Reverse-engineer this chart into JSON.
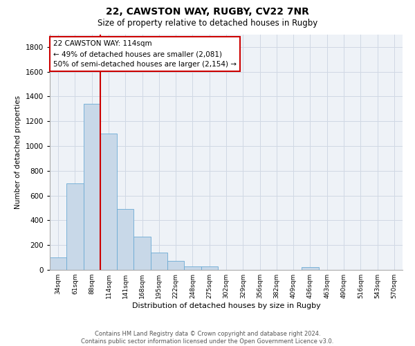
{
  "title": "22, CAWSTON WAY, RUGBY, CV22 7NR",
  "subtitle": "Size of property relative to detached houses in Rugby",
  "xlabel": "Distribution of detached houses by size in Rugby",
  "ylabel": "Number of detached properties",
  "bar_color": "#c8d8e8",
  "bar_edge_color": "#6aaad4",
  "marker_line_color": "#cc0000",
  "annotation_text": "22 CAWSTON WAY: 114sqm\n← 49% of detached houses are smaller (2,081)\n50% of semi-detached houses are larger (2,154) →",
  "annotation_box_color": "#cc0000",
  "categories": [
    "34sqm",
    "61sqm",
    "88sqm",
    "114sqm",
    "141sqm",
    "168sqm",
    "195sqm",
    "222sqm",
    "248sqm",
    "275sqm",
    "302sqm",
    "329sqm",
    "356sqm",
    "382sqm",
    "409sqm",
    "436sqm",
    "463sqm",
    "490sqm",
    "516sqm",
    "543sqm",
    "570sqm"
  ],
  "values": [
    100,
    700,
    1340,
    1100,
    490,
    270,
    140,
    70,
    30,
    30,
    0,
    0,
    0,
    0,
    0,
    20,
    0,
    0,
    0,
    0,
    0
  ],
  "ylim": [
    0,
    1900
  ],
  "yticks": [
    0,
    200,
    400,
    600,
    800,
    1000,
    1200,
    1400,
    1600,
    1800
  ],
  "footer_line1": "Contains HM Land Registry data © Crown copyright and database right 2024.",
  "footer_line2": "Contains public sector information licensed under the Open Government Licence v3.0.",
  "bg_color": "#ffffff",
  "plot_bg_color": "#eef2f7",
  "grid_color": "#d0d8e4"
}
